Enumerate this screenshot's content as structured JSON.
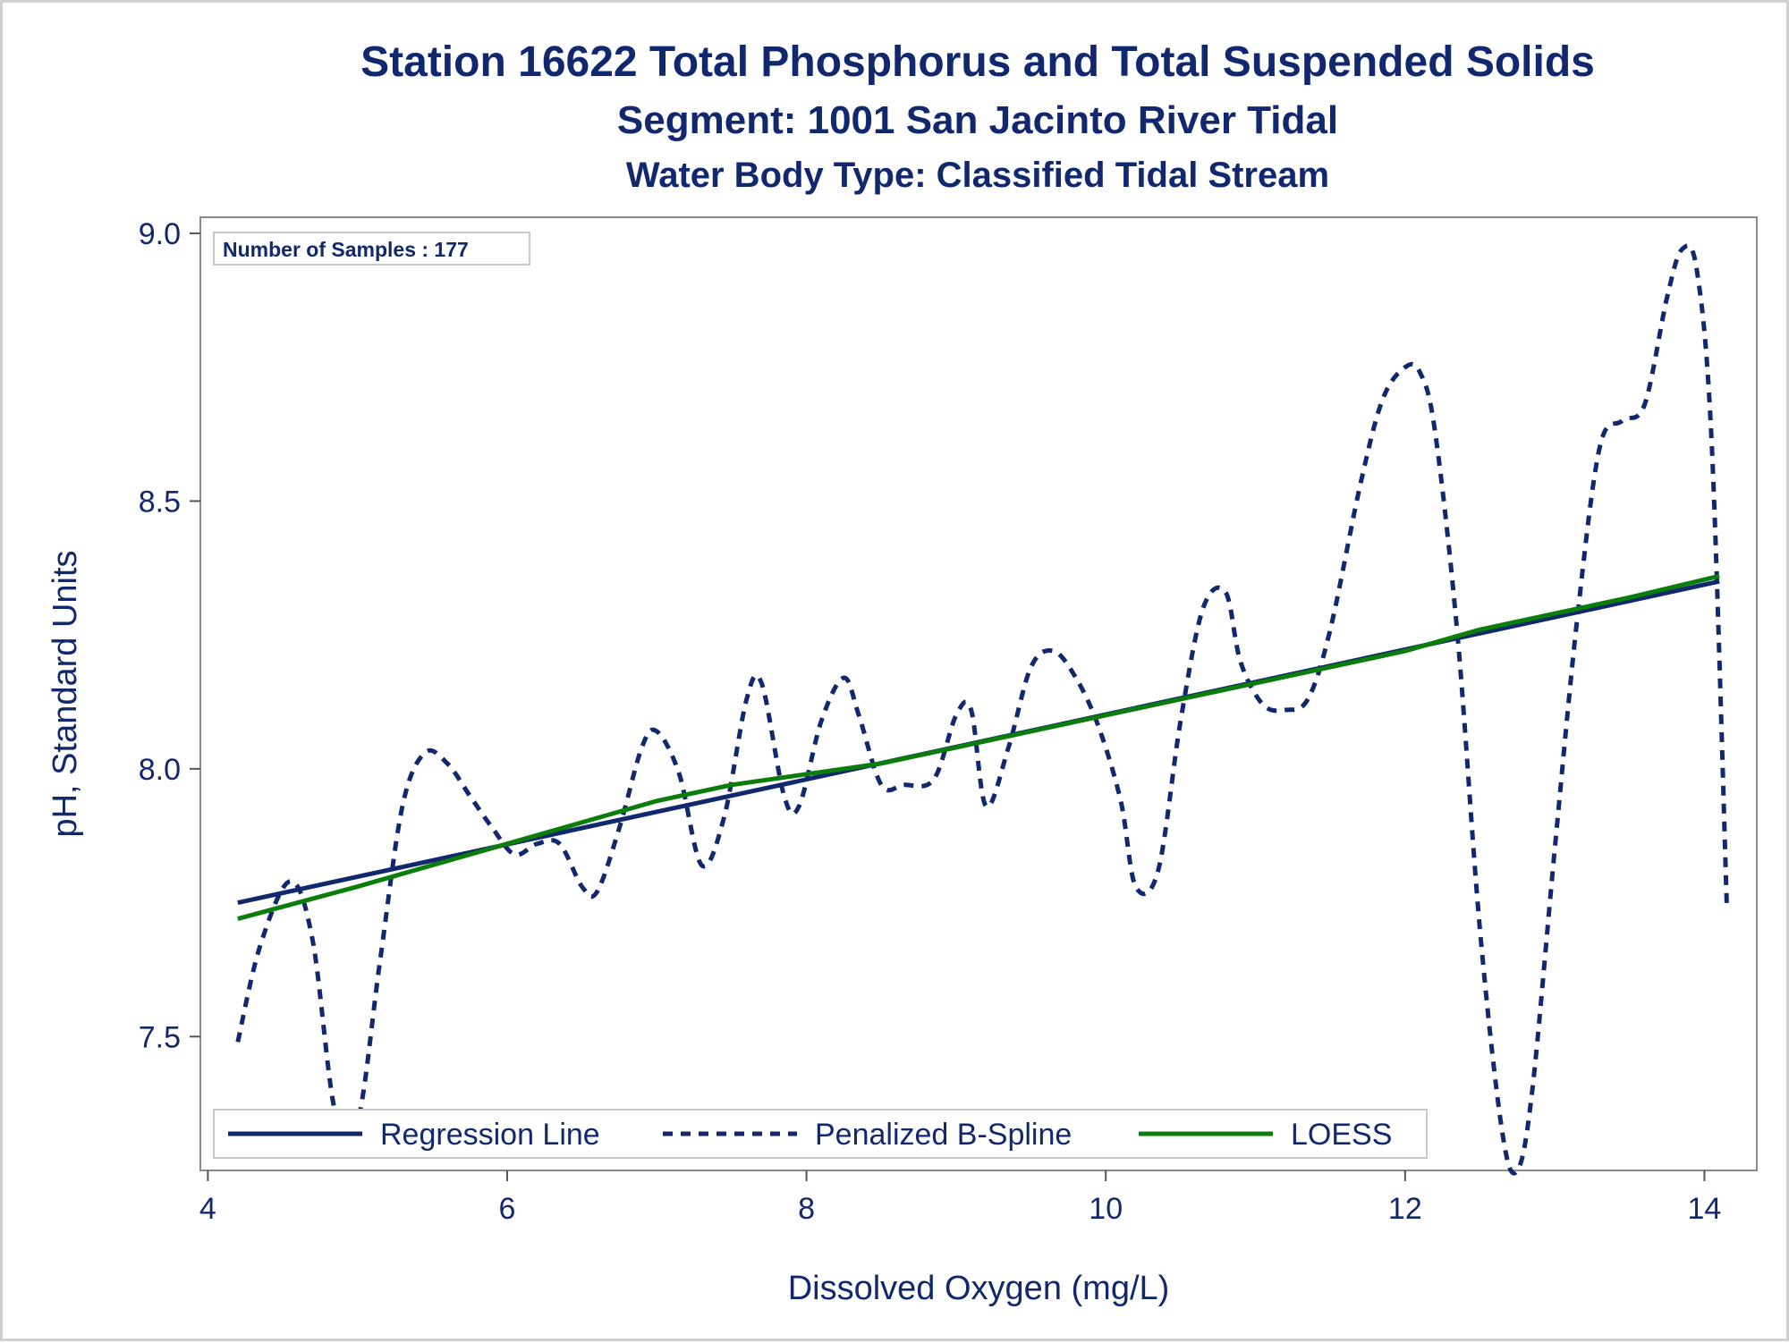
{
  "chart_data": {
    "type": "line",
    "title": "Station 16622  Total Phosphorus and Total Suspended Solids",
    "subtitle": "Segment: 1001  San Jacinto River Tidal",
    "subtitle2": "Water Body Type: Classified Tidal Stream",
    "xlabel": "Dissolved Oxygen (mg/L)",
    "ylabel": "pH, Standard Units",
    "xlim": [
      3.95,
      14.35
    ],
    "ylim": [
      7.25,
      9.03
    ],
    "xticks": [
      4,
      6,
      8,
      10,
      12,
      14
    ],
    "yticks": [
      7.5,
      8.0,
      8.5,
      9.0
    ],
    "x_tick_labels": [
      "4",
      "6",
      "8",
      "10",
      "12",
      "14"
    ],
    "y_tick_labels": [
      "7.5",
      "8.0",
      "8.5",
      "9.0"
    ],
    "grid": false,
    "legend_position": "bottom-left-inside",
    "inset_label": "Number of Samples : 177",
    "series": [
      {
        "name": "Regression Line",
        "color": "#12286e",
        "style": "solid",
        "x": [
          4.2,
          14.1
        ],
        "y": [
          7.75,
          8.35
        ]
      },
      {
        "name": "Penalized B-Spline",
        "color": "#12286e",
        "style": "dashed",
        "x": [
          4.2,
          4.35,
          4.55,
          4.7,
          4.85,
          5.0,
          5.15,
          5.3,
          5.45,
          5.6,
          5.75,
          5.9,
          6.05,
          6.2,
          6.35,
          6.5,
          6.6,
          6.75,
          6.9,
          7.0,
          7.15,
          7.3,
          7.45,
          7.6,
          7.7,
          7.85,
          7.95,
          8.1,
          8.25,
          8.35,
          8.5,
          8.65,
          8.85,
          9.0,
          9.1,
          9.2,
          9.35,
          9.5,
          9.65,
          9.8,
          9.95,
          10.1,
          10.2,
          10.35,
          10.5,
          10.65,
          10.8,
          10.9,
          11.05,
          11.2,
          11.35,
          11.5,
          11.7,
          11.85,
          12.0,
          12.1,
          12.2,
          12.35,
          12.5,
          12.65,
          12.75,
          12.85,
          13.0,
          13.15,
          13.3,
          13.45,
          13.6,
          13.75,
          13.85,
          13.95,
          14.05,
          14.15
        ],
        "y": [
          7.49,
          7.67,
          7.79,
          7.68,
          7.36,
          7.34,
          7.64,
          7.93,
          8.03,
          8.01,
          7.95,
          7.89,
          7.84,
          7.86,
          7.86,
          7.78,
          7.77,
          7.89,
          8.04,
          8.07,
          7.99,
          7.82,
          7.91,
          8.13,
          8.16,
          7.95,
          7.93,
          8.09,
          8.17,
          8.1,
          7.97,
          7.97,
          7.98,
          8.1,
          8.11,
          7.93,
          8.04,
          8.19,
          8.22,
          8.17,
          8.08,
          7.94,
          7.78,
          7.81,
          8.09,
          8.3,
          8.33,
          8.2,
          8.12,
          8.11,
          8.13,
          8.26,
          8.53,
          8.69,
          8.75,
          8.74,
          8.63,
          8.25,
          7.7,
          7.32,
          7.25,
          7.4,
          7.85,
          8.28,
          8.6,
          8.65,
          8.68,
          8.88,
          8.97,
          8.93,
          8.6,
          7.74
        ]
      },
      {
        "name": "LOESS",
        "color": "#0a7d0a",
        "style": "solid",
        "x": [
          4.2,
          4.6,
          5.0,
          5.5,
          6.0,
          6.5,
          7.0,
          7.5,
          8.0,
          8.5,
          9.0,
          9.5,
          10.0,
          10.5,
          11.0,
          11.5,
          12.0,
          12.5,
          13.0,
          13.5,
          14.1
        ],
        "y": [
          7.72,
          7.75,
          7.78,
          7.82,
          7.86,
          7.9,
          7.94,
          7.97,
          7.99,
          8.01,
          8.04,
          8.07,
          8.1,
          8.13,
          8.16,
          8.19,
          8.22,
          8.26,
          8.29,
          8.32,
          8.36
        ]
      }
    ]
  }
}
